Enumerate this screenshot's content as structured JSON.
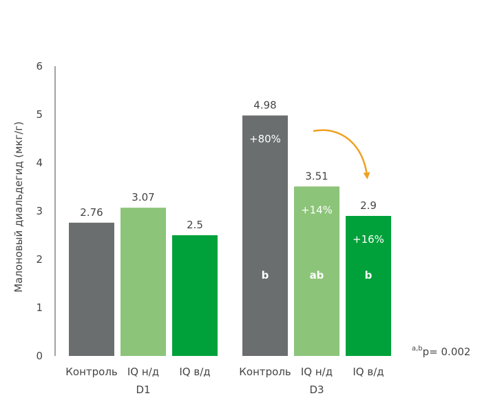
{
  "chart_data": {
    "type": "bar",
    "ylabel": "Малоновый диальдегид (мкг/г)",
    "ylim": [
      0,
      6
    ],
    "yticks": [
      "0",
      "1",
      "2",
      "3",
      "4",
      "5",
      "6"
    ],
    "grid": false,
    "groups": [
      {
        "name": "D1",
        "bars": [
          {
            "category": "Контроль",
            "value": 2.76,
            "label": "2.76",
            "color": "#6b6e6f",
            "change": "",
            "sig": ""
          },
          {
            "category": "IQ н/д",
            "value": 3.07,
            "label": "3.07",
            "color": "#8cc47a",
            "change": "",
            "sig": ""
          },
          {
            "category": "IQ в/д",
            "value": 2.5,
            "label": "2.5",
            "color": "#00a13a",
            "change": "",
            "sig": ""
          }
        ]
      },
      {
        "name": "D3",
        "bars": [
          {
            "category": "Контроль",
            "value": 4.98,
            "label": "4.98",
            "color": "#6b6e6f",
            "change": "+80%",
            "sig": "b"
          },
          {
            "category": "IQ н/д",
            "value": 3.51,
            "label": "3.51",
            "color": "#8cc47a",
            "change": "+14%",
            "sig": "ab"
          },
          {
            "category": "IQ в/д",
            "value": 2.9,
            "label": "2.9",
            "color": "#00a13a",
            "change": "+16%",
            "sig": "b"
          }
        ]
      }
    ],
    "p_note": {
      "superscript": "a,b",
      "text": "p= 0.002"
    },
    "arrow_color": "#f0a020"
  }
}
